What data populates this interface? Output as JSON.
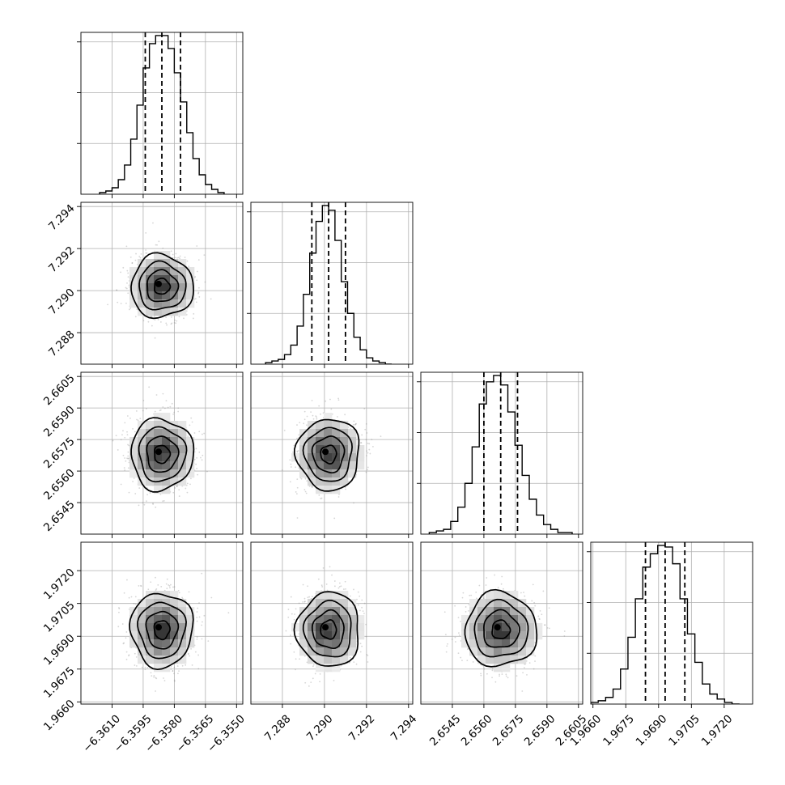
{
  "chart_data": {
    "type": "corner",
    "title": "",
    "grid": true,
    "parameters": [
      {
        "center": -6.3586,
        "sigma": 0.00075,
        "range": [
          -6.3625,
          -6.3547
        ],
        "quantiles": [
          -6.3594,
          -6.3586,
          -6.3577
        ],
        "ticks": [
          -6.361,
          -6.3595,
          -6.358,
          -6.3565,
          -6.355
        ],
        "tick_labels": [
          "−6.3610",
          "−6.3595",
          "−6.3580",
          "−6.3565",
          "−6.3550"
        ]
      },
      {
        "center": 7.2902,
        "sigma": 0.00075,
        "range": [
          7.2865,
          7.2942
        ],
        "quantiles": [
          7.2894,
          7.2902,
          7.291
        ],
        "ticks": [
          7.288,
          7.29,
          7.292,
          7.294
        ],
        "tick_labels": [
          "7.288",
          "7.290",
          "7.292",
          "7.294"
        ]
      },
      {
        "center": 2.6568,
        "sigma": 0.00085,
        "range": [
          2.653,
          2.6607
        ],
        "quantiles": [
          2.656,
          2.6568,
          2.6576
        ],
        "ticks": [
          2.6545,
          2.656,
          2.6575,
          2.659,
          2.6605
        ],
        "tick_labels": [
          "2.6545",
          "2.6560",
          "2.6575",
          "2.6590",
          "2.6605"
        ]
      },
      {
        "center": 1.9693,
        "sigma": 0.00085,
        "range": [
          1.9659,
          1.9733
        ],
        "quantiles": [
          1.9684,
          1.9693,
          1.9702
        ],
        "ticks": [
          1.966,
          1.9675,
          1.969,
          1.9705,
          1.972
        ],
        "tick_labels": [
          "1.9660",
          "1.9675",
          "1.9690",
          "1.9705",
          "1.9720"
        ]
      }
    ],
    "histograms": [
      [
        1,
        2,
        4,
        9,
        18,
        34,
        55,
        78,
        93,
        98,
        98,
        90,
        75,
        57,
        38,
        22,
        12,
        6,
        3,
        1
      ],
      [
        1,
        2,
        3,
        6,
        12,
        24,
        44,
        70,
        90,
        100,
        97,
        78,
        52,
        32,
        17,
        9,
        4,
        2,
        1,
        0
      ],
      [
        1,
        2,
        3,
        8,
        17,
        32,
        55,
        82,
        96,
        100,
        94,
        77,
        56,
        37,
        22,
        12,
        6,
        3,
        1,
        1
      ],
      [
        1,
        2,
        4,
        9,
        21,
        40,
        63,
        82,
        90,
        95,
        94,
        84,
        63,
        42,
        25,
        12,
        6,
        3,
        1,
        0
      ]
    ]
  }
}
